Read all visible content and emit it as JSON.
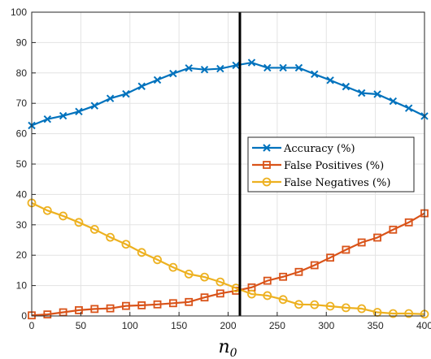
{
  "chart_data": {
    "type": "line",
    "xlabel": "n",
    "xlabel_subscript": "0",
    "ylabel": "",
    "title": "",
    "xlim": [
      0,
      400
    ],
    "ylim": [
      0,
      100
    ],
    "xticks": [
      0,
      50,
      100,
      150,
      200,
      250,
      300,
      350,
      400
    ],
    "yticks": [
      0,
      10,
      20,
      30,
      40,
      50,
      60,
      70,
      80,
      90,
      100
    ],
    "grid": true,
    "legend_position": "right",
    "vertical_line_x": 212,
    "x": [
      0,
      16,
      32,
      48,
      64,
      80,
      96,
      112,
      128,
      144,
      160,
      176,
      192,
      208,
      224,
      240,
      256,
      272,
      288,
      304,
      320,
      336,
      352,
      368,
      384,
      400
    ],
    "series": [
      {
        "name": "Accuracy (%)",
        "color": "#0072BD",
        "marker": "x",
        "values": [
          62.7,
          64.8,
          65.9,
          67.3,
          69.2,
          71.6,
          73.1,
          75.6,
          77.7,
          79.8,
          81.6,
          81.1,
          81.4,
          82.5,
          83.4,
          81.7,
          81.7,
          81.7,
          79.6,
          77.6,
          75.5,
          73.4,
          73.0,
          70.7,
          68.4,
          65.8
        ]
      },
      {
        "name": "False Positives (%)",
        "color": "#D95319",
        "marker": "s",
        "values": [
          0.2,
          0.5,
          1.2,
          1.9,
          2.3,
          2.5,
          3.3,
          3.5,
          3.8,
          4.2,
          4.6,
          6.1,
          7.4,
          8.3,
          9.4,
          11.6,
          12.9,
          14.5,
          16.7,
          19.2,
          21.8,
          24.2,
          25.8,
          28.4,
          30.8,
          33.8
        ]
      },
      {
        "name": "False Negatives (%)",
        "color": "#EDB120",
        "marker": "o",
        "values": [
          37.2,
          34.7,
          32.9,
          30.8,
          28.5,
          25.9,
          23.6,
          20.9,
          18.5,
          16.0,
          13.8,
          12.8,
          11.2,
          9.2,
          7.2,
          6.7,
          5.4,
          3.8,
          3.7,
          3.2,
          2.7,
          2.4,
          1.2,
          0.8,
          0.8,
          0.6
        ]
      }
    ]
  }
}
